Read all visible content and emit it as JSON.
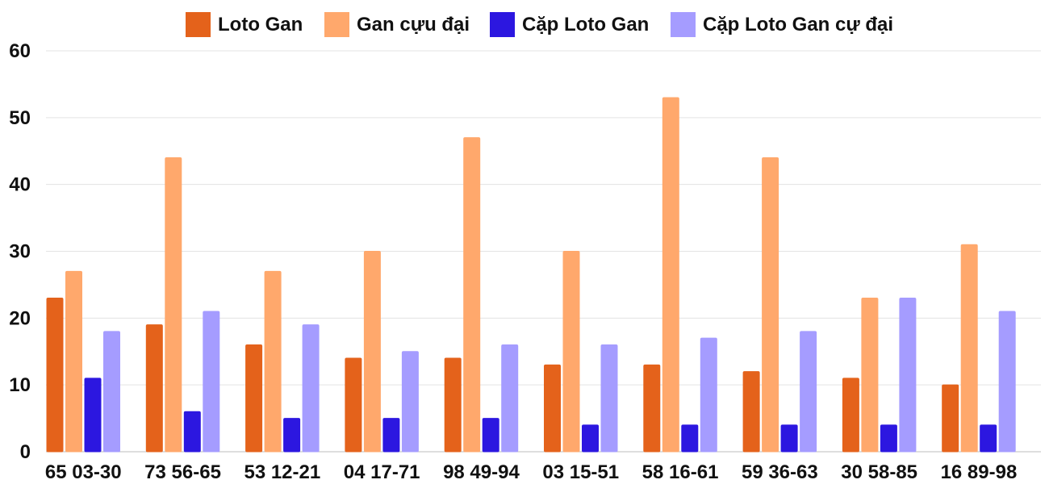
{
  "chart_data": {
    "type": "bar",
    "title": "",
    "xlabel": "",
    "ylabel": "",
    "ylim": [
      0,
      60
    ],
    "yticks": [
      0,
      10,
      20,
      30,
      40,
      50,
      60
    ],
    "grid": true,
    "legend_position": "top-center",
    "categories": [
      "65 03-30",
      "73 56-65",
      "53 12-21",
      "04 17-71",
      "98 49-94",
      "03 15-51",
      "58 16-61",
      "59 36-63",
      "30 58-85",
      "16 89-98"
    ],
    "series": [
      {
        "name": "Loto Gan",
        "color": "#e4621b",
        "values": [
          23,
          19,
          16,
          14,
          14,
          13,
          13,
          12,
          11,
          10
        ]
      },
      {
        "name": "Gan cựu đại",
        "color": "#ffa86c",
        "values": [
          27,
          44,
          27,
          30,
          47,
          30,
          53,
          44,
          23,
          31
        ]
      },
      {
        "name": "Cặp Loto Gan",
        "color": "#2c17e0",
        "values": [
          11,
          6,
          5,
          5,
          5,
          4,
          4,
          4,
          4,
          4
        ]
      },
      {
        "name": "Cặp Loto Gan cự đại",
        "color": "#a59cff",
        "values": [
          18,
          21,
          19,
          15,
          16,
          16,
          17,
          18,
          23,
          21
        ]
      }
    ]
  }
}
